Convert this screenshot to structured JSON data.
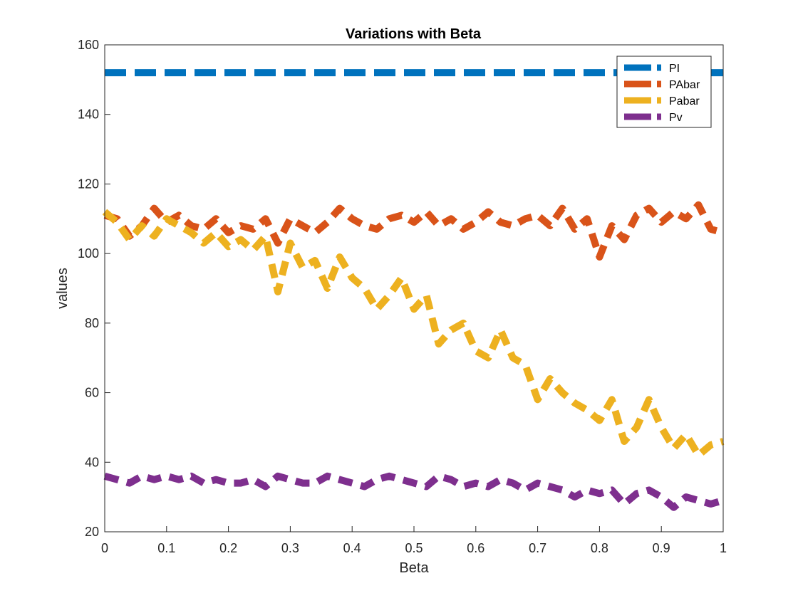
{
  "chart_data": {
    "type": "line",
    "title": "Variations with Beta",
    "xlabel": "Beta",
    "ylabel": "values",
    "xlim": [
      0,
      1
    ],
    "ylim": [
      20,
      160
    ],
    "xticks": [
      0,
      0.1,
      0.2,
      0.3,
      0.4,
      0.5,
      0.6,
      0.7,
      0.8,
      0.9,
      1
    ],
    "yticks": [
      20,
      40,
      60,
      80,
      100,
      120,
      140,
      160
    ],
    "xtick_labels": [
      "0",
      "0.1",
      "0.2",
      "0.3",
      "0.4",
      "0.5",
      "0.6",
      "0.7",
      "0.8",
      "0.9",
      "1"
    ],
    "ytick_labels": [
      "20",
      "40",
      "60",
      "80",
      "100",
      "120",
      "140",
      "160"
    ],
    "grid": false,
    "legend_position": "top-right",
    "x": [
      0,
      0.02,
      0.04,
      0.06,
      0.08,
      0.1,
      0.12,
      0.14,
      0.16,
      0.18,
      0.2,
      0.22,
      0.24,
      0.26,
      0.28,
      0.3,
      0.32,
      0.34,
      0.36,
      0.38,
      0.4,
      0.42,
      0.44,
      0.46,
      0.48,
      0.5,
      0.52,
      0.54,
      0.56,
      0.58,
      0.6,
      0.62,
      0.64,
      0.66,
      0.68,
      0.7,
      0.72,
      0.74,
      0.76,
      0.78,
      0.8,
      0.82,
      0.84,
      0.86,
      0.88,
      0.9,
      0.92,
      0.94,
      0.96,
      0.98,
      1
    ],
    "series": [
      {
        "name": "PI",
        "color": "#0072BD",
        "values": [
          152,
          152,
          152,
          152,
          152,
          152,
          152,
          152,
          152,
          152,
          152,
          152,
          152,
          152,
          152,
          152,
          152,
          152,
          152,
          152,
          152,
          152,
          152,
          152,
          152,
          152,
          152,
          152,
          152,
          152,
          152,
          152,
          152,
          152,
          152,
          152,
          152,
          152,
          152,
          152,
          152,
          152,
          152,
          152,
          152,
          152,
          152,
          152,
          152,
          152,
          152
        ]
      },
      {
        "name": "PAbar",
        "color": "#D95319",
        "values": [
          111,
          110,
          105,
          108,
          113,
          109,
          111,
          108,
          107,
          110,
          106,
          108,
          107,
          110,
          103,
          110,
          108,
          106,
          109,
          113,
          110,
          108,
          107,
          110,
          111,
          109,
          112,
          108,
          110,
          107,
          109,
          112,
          109,
          108,
          110,
          111,
          108,
          113,
          107,
          110,
          99,
          108,
          104,
          111,
          113,
          109,
          112,
          110,
          114,
          107,
          106
        ]
      },
      {
        "name": "Pabar",
        "color": "#EDB120",
        "values": [
          112,
          109,
          104,
          108,
          105,
          110,
          108,
          106,
          103,
          106,
          102,
          104,
          101,
          105,
          89,
          103,
          96,
          98,
          90,
          99,
          93,
          90,
          84,
          88,
          93,
          84,
          88,
          74,
          78,
          80,
          72,
          70,
          78,
          70,
          68,
          58,
          64,
          60,
          57,
          55,
          52,
          58,
          46,
          50,
          58,
          50,
          44,
          48,
          42,
          45,
          46
        ]
      },
      {
        "name": "Pv",
        "color": "#7E2F8E",
        "values": [
          36,
          35,
          34,
          36,
          35,
          36,
          35,
          36,
          34,
          35,
          34,
          34,
          35,
          33,
          36,
          35,
          34,
          34,
          36,
          35,
          34,
          33,
          35,
          36,
          35,
          34,
          33,
          36,
          35,
          33,
          34,
          33,
          35,
          34,
          32,
          34,
          33,
          32,
          30,
          32,
          31,
          32,
          28,
          31,
          32,
          30,
          27,
          30,
          29,
          28,
          29
        ]
      }
    ]
  }
}
